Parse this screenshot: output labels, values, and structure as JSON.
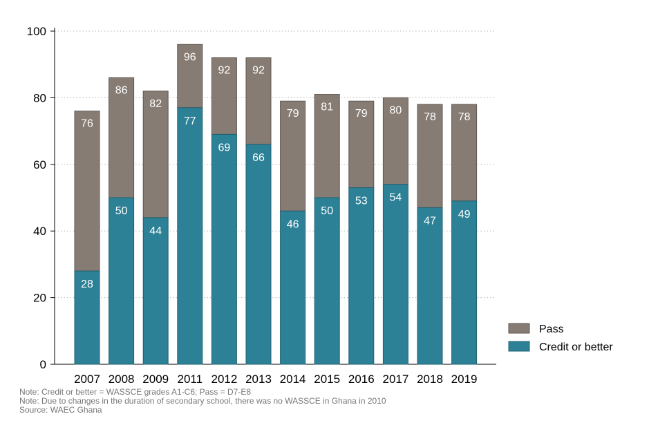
{
  "chart_data": {
    "type": "bar",
    "stacked": true,
    "categories": [
      "2007",
      "2008",
      "2009",
      "2011",
      "2012",
      "2013",
      "2014",
      "2015",
      "2016",
      "2017",
      "2018",
      "2019"
    ],
    "series": [
      {
        "name": "Credit or better",
        "color": "#2d8196",
        "values": [
          28,
          50,
          44,
          77,
          69,
          66,
          46,
          50,
          53,
          54,
          47,
          49
        ]
      },
      {
        "name": "Pass",
        "color": "#877c74",
        "totals": [
          76,
          86,
          82,
          96,
          92,
          92,
          79,
          81,
          79,
          80,
          78,
          78
        ]
      }
    ],
    "ylim": [
      0,
      100
    ],
    "yticks": [
      0,
      20,
      40,
      60,
      80,
      100
    ],
    "grid": true,
    "legend": {
      "position": "right",
      "entries": [
        "Pass",
        "Credit or better"
      ]
    }
  },
  "notes": [
    "Note: Credit or better = WASSCE grades A1-C6; Pass = D7-E8",
    "Note: Due to changes in the duration of secondary school, there was no WASSCE in Ghana in 2010",
    "Source: WAEC Ghana"
  ]
}
